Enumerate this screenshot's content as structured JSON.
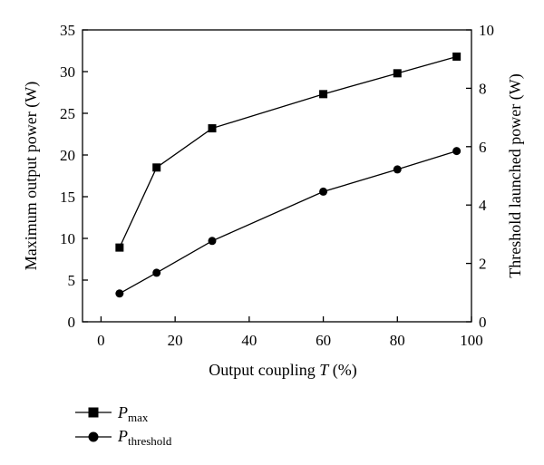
{
  "chart_data": {
    "type": "line",
    "xlabel": {
      "main": "Output coupling ",
      "italic": "T",
      "unit": " (%)"
    },
    "ylabel_left": "Maximum output power (W)",
    "ylabel_right": "Threshold launched power (W)",
    "xlim": [
      -5,
      100
    ],
    "ylim_left": [
      0,
      35
    ],
    "ylim_right": [
      0,
      10
    ],
    "xticks": [
      0,
      20,
      40,
      60,
      80,
      100
    ],
    "yticks_left": [
      0,
      5,
      10,
      15,
      20,
      25,
      30,
      35
    ],
    "yticks_right": [
      0,
      2,
      4,
      6,
      8,
      10
    ],
    "x": [
      5,
      15,
      30,
      60,
      80,
      96
    ],
    "series": [
      {
        "name": "P",
        "sub": "max",
        "axis": "left",
        "marker": "square",
        "values": [
          8.9,
          18.5,
          23.2,
          27.3,
          29.8,
          31.8
        ]
      },
      {
        "name": "P",
        "sub": "threshold",
        "axis": "right",
        "marker": "circle",
        "values": [
          0.97,
          1.68,
          2.77,
          4.46,
          5.22,
          5.85
        ]
      }
    ],
    "grid": false,
    "legend_position": "bottom-left"
  }
}
